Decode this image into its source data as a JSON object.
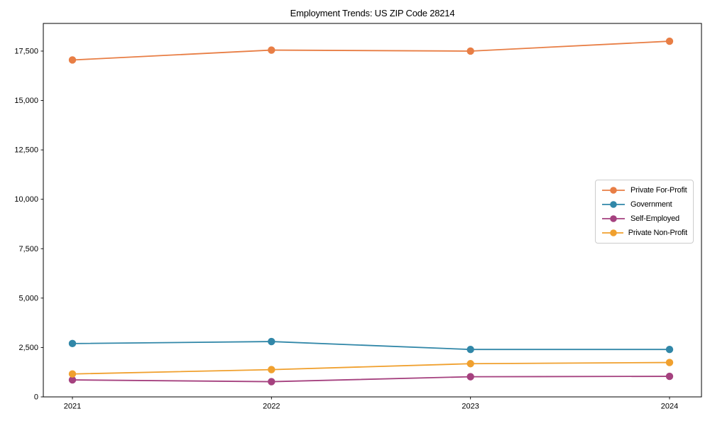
{
  "chart_data": {
    "type": "line",
    "title": "Employment Trends: US ZIP Code 28214",
    "xlabel": "",
    "ylabel": "",
    "categories": [
      "2021",
      "2022",
      "2023",
      "2024"
    ],
    "series": [
      {
        "name": "Private For-Profit",
        "color": "#e87e45",
        "values": [
          17050,
          17550,
          17500,
          18000
        ]
      },
      {
        "name": "Government",
        "color": "#3187a8",
        "values": [
          2700,
          2800,
          2400,
          2400
        ]
      },
      {
        "name": "Self-Employed",
        "color": "#a5417f",
        "values": [
          860,
          770,
          1020,
          1040
        ]
      },
      {
        "name": "Private Non-Profit",
        "color": "#f0a02e",
        "values": [
          1160,
          1380,
          1680,
          1740
        ]
      }
    ],
    "ylim": [
      0,
      18900
    ],
    "yticks": [
      0,
      2500,
      5000,
      7500,
      10000,
      12500,
      15000,
      17500
    ],
    "ytick_labels": [
      "0",
      "2,500",
      "5,000",
      "7,500",
      "10,000",
      "12,500",
      "15,000",
      "17,500"
    ],
    "grid": false,
    "legend_position": "right-middle",
    "axis_color": "#000000"
  }
}
